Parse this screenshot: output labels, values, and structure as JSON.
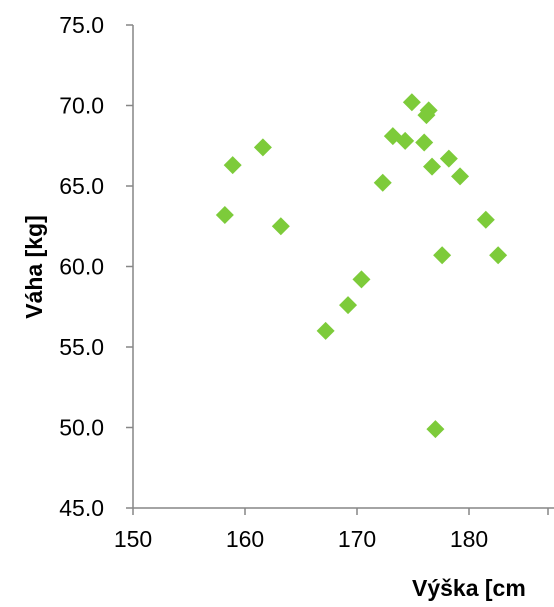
{
  "chart_data": {
    "type": "scatter",
    "xlabel": "Výška [cm",
    "ylabel": "Váha [kg]",
    "xlim": [
      150,
      187
    ],
    "ylim": [
      45,
      75
    ],
    "x_ticks": [
      "150",
      "160",
      "170",
      "180"
    ],
    "x_tick_values": [
      150,
      160,
      170,
      180
    ],
    "y_ticks": [
      "45.0",
      "50.0",
      "55.0",
      "60.0",
      "65.0",
      "70.0",
      "75.0"
    ],
    "y_tick_values": [
      45,
      50,
      55,
      60,
      65,
      70,
      75
    ],
    "marker": "diamond",
    "marker_color": "#7dcb3a",
    "grid": false,
    "series": [
      {
        "points": [
          {
            "x": 158.2,
            "y": 63.2
          },
          {
            "x": 158.9,
            "y": 66.3
          },
          {
            "x": 161.6,
            "y": 67.4
          },
          {
            "x": 163.2,
            "y": 62.5
          },
          {
            "x": 167.2,
            "y": 56.0
          },
          {
            "x": 169.2,
            "y": 57.6
          },
          {
            "x": 170.4,
            "y": 59.2
          },
          {
            "x": 172.3,
            "y": 65.2
          },
          {
            "x": 173.2,
            "y": 68.1
          },
          {
            "x": 174.3,
            "y": 67.8
          },
          {
            "x": 174.9,
            "y": 70.2
          },
          {
            "x": 176.0,
            "y": 67.7
          },
          {
            "x": 176.4,
            "y": 69.7
          },
          {
            "x": 176.2,
            "y": 69.4
          },
          {
            "x": 176.7,
            "y": 66.2
          },
          {
            "x": 177.0,
            "y": 49.9
          },
          {
            "x": 177.6,
            "y": 60.7
          },
          {
            "x": 178.2,
            "y": 66.7
          },
          {
            "x": 179.2,
            "y": 65.6
          },
          {
            "x": 181.5,
            "y": 62.9
          },
          {
            "x": 182.6,
            "y": 60.7
          }
        ]
      }
    ]
  }
}
